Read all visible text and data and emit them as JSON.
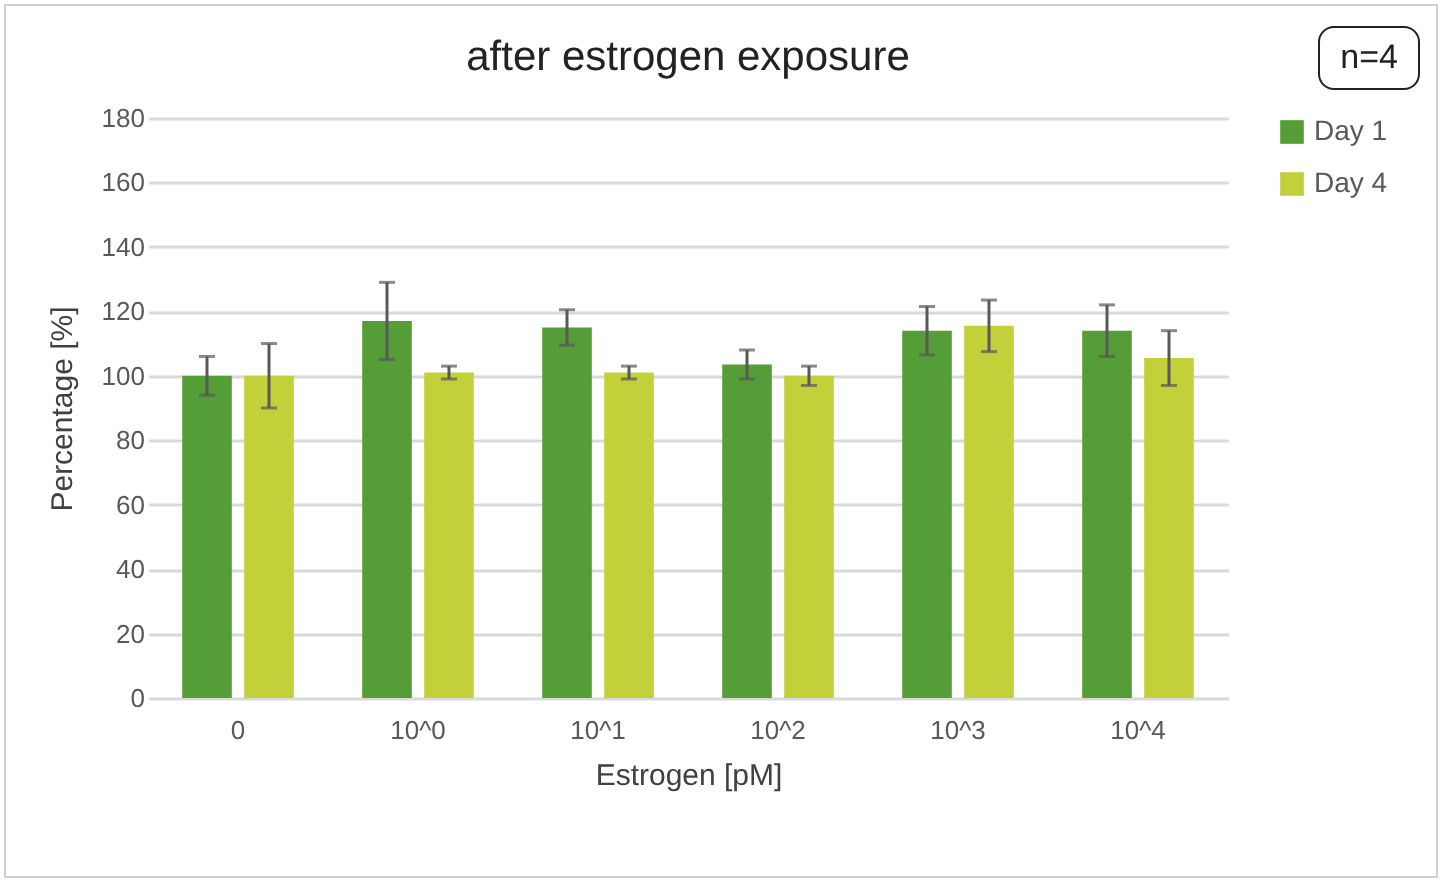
{
  "chart_data": {
    "type": "bar",
    "title": "after estrogen exposure",
    "xlabel": "Estrogen [pM]",
    "ylabel": "Percentage [%]",
    "categories": [
      "0",
      "10^0",
      "10^1",
      "10^2",
      "10^3",
      "10^4"
    ],
    "series": [
      {
        "name": "Day 1",
        "color": "#559e37",
        "values": [
          100,
          117,
          115,
          103.5,
          114,
          114
        ],
        "errors": [
          6,
          12,
          5.5,
          4.5,
          7.5,
          8
        ]
      },
      {
        "name": "Day 4",
        "color": "#c2d13a",
        "values": [
          100,
          101,
          101,
          100,
          115.5,
          105.5
        ],
        "errors": [
          10,
          2,
          2,
          3,
          8,
          8.5
        ]
      }
    ],
    "ylim": [
      0,
      180
    ],
    "yticks": [
      0,
      20,
      40,
      60,
      80,
      100,
      120,
      140,
      160,
      180
    ],
    "grid": "y",
    "legend": "right",
    "annotations": [
      "n=4"
    ]
  }
}
